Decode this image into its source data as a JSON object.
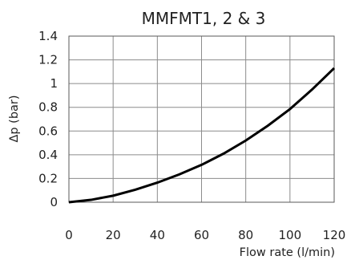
{
  "chart_data": {
    "type": "line",
    "title": "MMFMT1, 2 & 3",
    "xlabel": "Flow rate (l/min)",
    "ylabel": "Δp (bar)",
    "xlim": [
      0,
      120
    ],
    "ylim": [
      0,
      1.4
    ],
    "x_ticks": [
      "0",
      "20",
      "40",
      "60",
      "80",
      "100",
      "120"
    ],
    "y_ticks": [
      "0",
      "0.2",
      "0.4",
      "0.6",
      "0.8",
      "1",
      "1.2",
      "1.4"
    ],
    "grid": true,
    "series": [
      {
        "x": [
          0,
          10,
          20,
          30,
          40,
          50,
          60,
          70,
          80,
          90,
          100,
          110,
          120
        ],
        "y": [
          0.0,
          0.02,
          0.055,
          0.105,
          0.165,
          0.235,
          0.315,
          0.41,
          0.52,
          0.645,
          0.785,
          0.95,
          1.13
        ]
      }
    ]
  }
}
